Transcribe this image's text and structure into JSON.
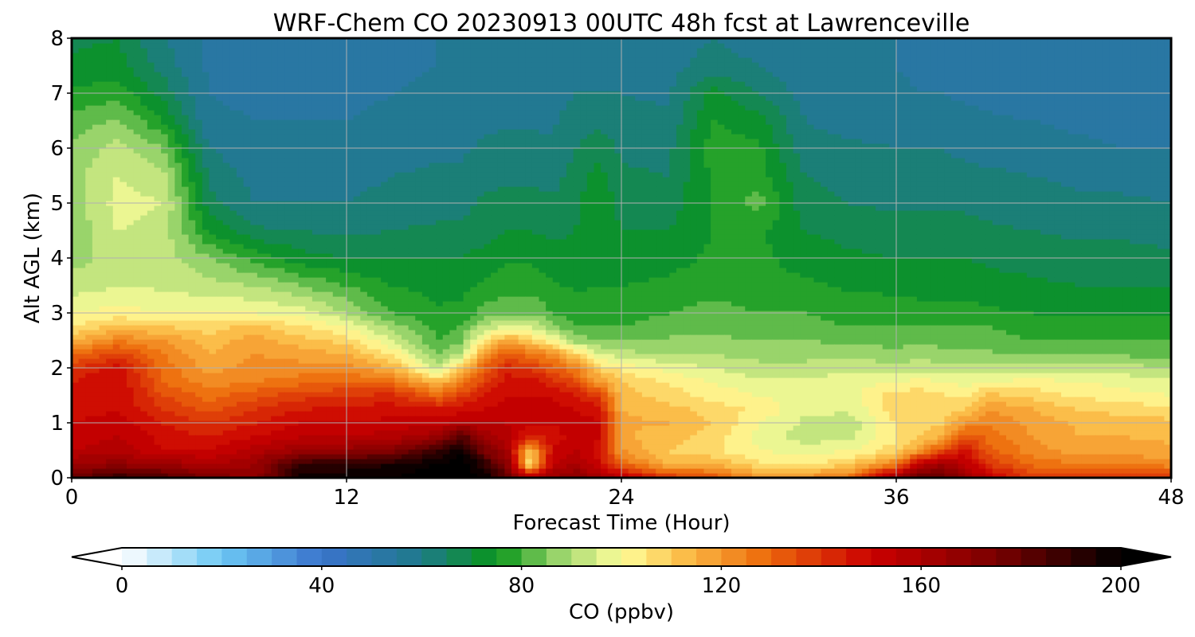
{
  "chart_data": {
    "type": "heatmap",
    "title": "WRF-Chem CO  20230913 00UTC 48h fcst at Lawrenceville",
    "xlabel": "Forecast Time (Hour)",
    "ylabel": "Alt AGL (km)",
    "xlim": [
      0,
      48
    ],
    "ylim": [
      0,
      8
    ],
    "x_ticks": [
      0,
      12,
      24,
      36,
      48
    ],
    "y_ticks": [
      0,
      1,
      2,
      3,
      4,
      5,
      6,
      7,
      8
    ],
    "grid": true,
    "colorbar": {
      "label": "CO  (ppbv)",
      "min": 0,
      "max": 200,
      "step": 5,
      "ticks": [
        0,
        40,
        80,
        120,
        160,
        200
      ],
      "extend": "both",
      "color_stops": [
        {
          "value": 0,
          "color": "#ffffff"
        },
        {
          "value": 20,
          "color": "#6cc8f4"
        },
        {
          "value": 40,
          "color": "#3a73cc"
        },
        {
          "value": 60,
          "color": "#1f7a8a"
        },
        {
          "value": 75,
          "color": "#08951a"
        },
        {
          "value": 88,
          "color": "#9fd66e"
        },
        {
          "value": 100,
          "color": "#ffff9c"
        },
        {
          "value": 112,
          "color": "#fbc04b"
        },
        {
          "value": 128,
          "color": "#ee6f0e"
        },
        {
          "value": 150,
          "color": "#cb0000"
        },
        {
          "value": 175,
          "color": "#7a0000"
        },
        {
          "value": 200,
          "color": "#000000"
        }
      ]
    },
    "x": [
      0,
      2,
      4,
      6,
      8,
      10,
      12,
      14,
      16,
      17,
      18,
      19,
      20,
      21,
      22,
      23,
      24,
      26,
      28,
      30,
      32,
      34,
      36,
      37,
      38,
      39,
      40,
      42,
      44,
      46,
      48
    ],
    "y": [
      0,
      0.25,
      0.5,
      0.75,
      1,
      1.25,
      1.5,
      1.75,
      2,
      2.25,
      2.5,
      2.75,
      3,
      3.5,
      4,
      4.5,
      5,
      5.5,
      6,
      6.5,
      7,
      7.5,
      8
    ],
    "columns": [
      {
        "x": 0,
        "co": [
          178,
          165,
          155,
          152,
          150,
          148,
          148,
          145,
          140,
          128,
          115,
          105,
          100,
          92,
          88,
          86,
          87,
          88,
          86,
          82,
          76,
          71,
          69
        ]
      },
      {
        "x": 2,
        "co": [
          190,
          168,
          158,
          155,
          152,
          150,
          150,
          150,
          148,
          138,
          125,
          112,
          102,
          95,
          92,
          95,
          97,
          95,
          92,
          86,
          78,
          72,
          70
        ]
      },
      {
        "x": 4,
        "co": [
          185,
          165,
          150,
          148,
          145,
          140,
          135,
          130,
          128,
          125,
          120,
          110,
          100,
          94,
          92,
          93,
          95,
          92,
          85,
          75,
          68,
          63,
          60
        ]
      },
      {
        "x": 6,
        "co": [
          175,
          160,
          150,
          145,
          140,
          133,
          128,
          122,
          118,
          115,
          112,
          108,
          100,
          92,
          86,
          74,
          67,
          64,
          60,
          56,
          55,
          54,
          54
        ]
      },
      {
        "x": 8,
        "co": [
          168,
          165,
          158,
          150,
          145,
          140,
          133,
          125,
          122,
          120,
          118,
          112,
          100,
          90,
          78,
          66,
          60,
          58,
          56,
          55,
          54,
          53,
          53
        ]
      },
      {
        "x": 10,
        "co": [
          198,
          190,
          165,
          155,
          150,
          145,
          138,
          128,
          122,
          118,
          112,
          106,
          98,
          85,
          72,
          65,
          60,
          57,
          56,
          55,
          54,
          53,
          53
        ]
      },
      {
        "x": 12,
        "co": [
          198,
          192,
          168,
          155,
          150,
          146,
          140,
          130,
          122,
          115,
          108,
          100,
          90,
          80,
          70,
          64,
          60,
          58,
          56,
          55,
          54,
          53,
          53
        ]
      },
      {
        "x": 14,
        "co": [
          200,
          195,
          172,
          158,
          152,
          148,
          142,
          128,
          115,
          105,
          95,
          88,
          80,
          75,
          70,
          65,
          62,
          60,
          58,
          56,
          55,
          54,
          54
        ]
      },
      {
        "x": 16,
        "co": [
          205,
          200,
          190,
          165,
          152,
          146,
          130,
          112,
          92,
          85,
          80,
          78,
          76,
          73,
          70,
          66,
          63,
          61,
          59,
          57,
          56,
          55,
          55
        ]
      },
      {
        "x": 17,
        "co": [
          205,
          205,
          198,
          185,
          158,
          148,
          138,
          125,
          110,
          92,
          84,
          80,
          77,
          73,
          70,
          66,
          63,
          61,
          59,
          57,
          56,
          55,
          55
        ]
      },
      {
        "x": 18,
        "co": [
          200,
          192,
          175,
          165,
          155,
          150,
          145,
          138,
          130,
          120,
          105,
          92,
          82,
          76,
          72,
          68,
          66,
          63,
          61,
          59,
          57,
          56,
          56
        ]
      },
      {
        "x": 19,
        "co": [
          180,
          170,
          162,
          158,
          155,
          152,
          150,
          148,
          142,
          132,
          118,
          96,
          84,
          78,
          74,
          70,
          67,
          64,
          62,
          59,
          58,
          57,
          57
        ]
      },
      {
        "x": 20,
        "co": [
          158,
          105,
          110,
          142,
          150,
          150,
          150,
          148,
          140,
          128,
          110,
          95,
          84,
          78,
          74,
          70,
          67,
          64,
          62,
          59,
          58,
          57,
          57
        ]
      },
      {
        "x": 21,
        "co": [
          165,
          155,
          150,
          148,
          150,
          152,
          150,
          142,
          132,
          122,
          100,
          88,
          80,
          76,
          72,
          69,
          66,
          63,
          61,
          59,
          58,
          57,
          57
        ]
      },
      {
        "x": 22,
        "co": [
          172,
          160,
          155,
          152,
          152,
          150,
          145,
          135,
          125,
          110,
          88,
          80,
          78,
          74,
          71,
          70,
          69,
          67,
          65,
          63,
          60,
          58,
          58
        ]
      },
      {
        "x": 23,
        "co": [
          162,
          150,
          148,
          150,
          150,
          148,
          138,
          120,
          108,
          96,
          86,
          80,
          78,
          75,
          73,
          74,
          74,
          72,
          68,
          64,
          60,
          58,
          58
        ]
      },
      {
        "x": 24,
        "co": [
          158,
          130,
          120,
          116,
          116,
          115,
          112,
          110,
          104,
          92,
          85,
          80,
          78,
          75,
          72,
          70,
          68,
          66,
          64,
          62,
          60,
          58,
          58
        ]
      },
      {
        "x": 26,
        "co": [
          140,
          115,
          110,
          112,
          115,
          112,
          108,
          104,
          98,
          90,
          86,
          82,
          80,
          76,
          73,
          70,
          67,
          65,
          63,
          61,
          59,
          58,
          58
        ]
      },
      {
        "x": 28,
        "co": [
          135,
          115,
          106,
          108,
          110,
          108,
          103,
          100,
          95,
          90,
          86,
          84,
          82,
          78,
          76,
          75,
          76,
          76,
          78,
          75,
          72,
          62,
          60
        ]
      },
      {
        "x": 30,
        "co": [
          120,
          106,
          100,
          98,
          100,
          104,
          100,
          96,
          92,
          88,
          85,
          82,
          80,
          77,
          76,
          76,
          82,
          78,
          76,
          72,
          65,
          60,
          58
        ]
      },
      {
        "x": 32,
        "co": [
          122,
          104,
          98,
          92,
          94,
          96,
          98,
          96,
          92,
          88,
          85,
          82,
          80,
          76,
          73,
          70,
          67,
          65,
          62,
          60,
          58,
          56,
          56
        ]
      },
      {
        "x": 34,
        "co": [
          128,
          110,
          100,
          94,
          92,
          96,
          98,
          98,
          94,
          88,
          84,
          80,
          78,
          74,
          71,
          68,
          65,
          63,
          61,
          58,
          56,
          55,
          55
        ]
      },
      {
        "x": 36,
        "co": [
          170,
          125,
          108,
          104,
          106,
          108,
          108,
          100,
          92,
          87,
          83,
          80,
          77,
          74,
          70,
          67,
          64,
          62,
          60,
          58,
          56,
          55,
          55
        ]
      },
      {
        "x": 37,
        "co": [
          182,
          155,
          120,
          110,
          108,
          108,
          108,
          102,
          93,
          88,
          84,
          80,
          77,
          73,
          70,
          67,
          64,
          62,
          60,
          58,
          55,
          54,
          54
        ]
      },
      {
        "x": 38,
        "co": [
          178,
          165,
          135,
          115,
          110,
          108,
          106,
          100,
          92,
          87,
          83,
          80,
          77,
          73,
          70,
          67,
          64,
          62,
          60,
          58,
          55,
          54,
          54
        ]
      },
      {
        "x": 39,
        "co": [
          168,
          155,
          148,
          135,
          120,
          110,
          104,
          98,
          92,
          86,
          82,
          80,
          77,
          73,
          70,
          67,
          64,
          61,
          59,
          57,
          54,
          53,
          53
        ]
      },
      {
        "x": 40,
        "co": [
          155,
          140,
          132,
          128,
          125,
          120,
          112,
          100,
          92,
          86,
          82,
          80,
          76,
          72,
          69,
          66,
          63,
          61,
          58,
          56,
          53,
          52,
          52
        ]
      },
      {
        "x": 42,
        "co": [
          138,
          128,
          122,
          120,
          118,
          115,
          108,
          102,
          92,
          85,
          80,
          78,
          75,
          71,
          68,
          65,
          62,
          60,
          57,
          55,
          52,
          51,
          51
        ]
      },
      {
        "x": 44,
        "co": [
          138,
          125,
          118,
          115,
          114,
          110,
          104,
          100,
          92,
          84,
          80,
          77,
          74,
          70,
          67,
          64,
          61,
          59,
          56,
          54,
          52,
          51,
          51
        ]
      },
      {
        "x": 46,
        "co": [
          140,
          125,
          118,
          115,
          112,
          108,
          102,
          98,
          92,
          84,
          80,
          77,
          74,
          70,
          67,
          64,
          61,
          58,
          55,
          53,
          51,
          50,
          50
        ]
      },
      {
        "x": 48,
        "co": [
          142,
          122,
          116,
          114,
          112,
          106,
          100,
          96,
          90,
          84,
          80,
          77,
          74,
          70,
          66,
          63,
          60,
          58,
          55,
          53,
          51,
          50,
          50
        ]
      }
    ]
  }
}
